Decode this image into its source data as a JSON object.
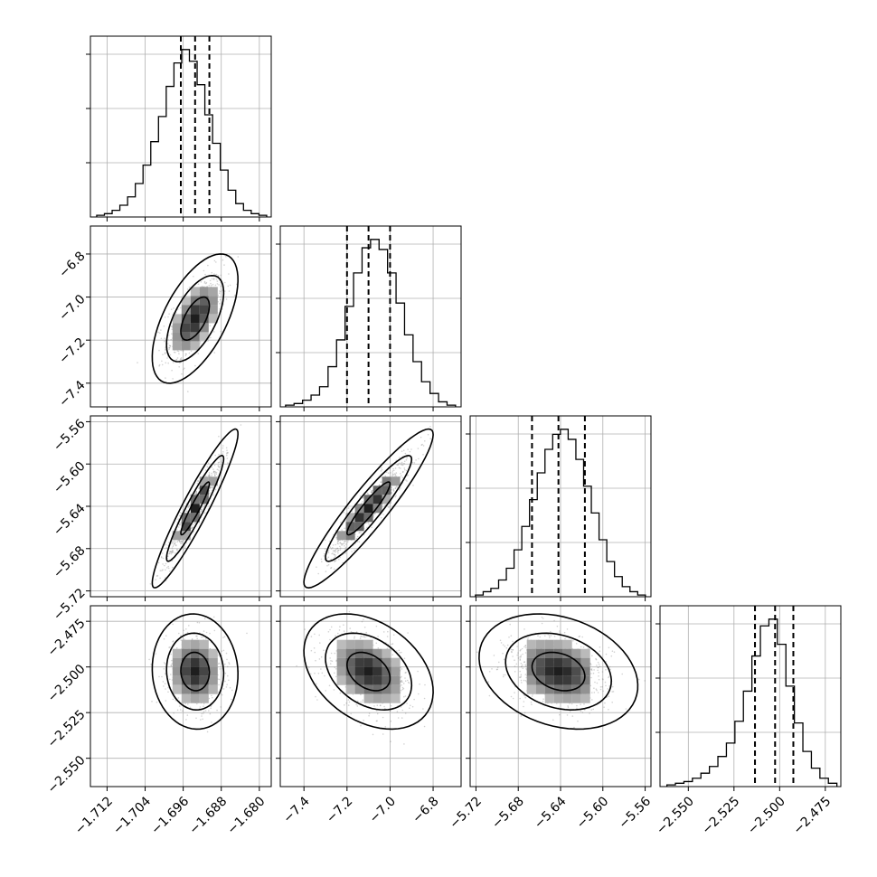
{
  "chart_data": {
    "type": "corner",
    "params": [
      {
        "median": -1.6935,
        "q16": -1.6965,
        "q84": -1.6905,
        "xlim": [
          -1.7155,
          -1.6775
        ],
        "ticks": [
          -1.712,
          -1.704,
          -1.696,
          -1.688,
          -1.68
        ],
        "tick_labels": [
          "−1.712",
          "−1.704",
          "−1.696",
          "−1.688",
          "−1.680"
        ]
      },
      {
        "median": -7.1,
        "q16": -7.2,
        "q84": -7.0,
        "xlim": [
          -7.51,
          -6.67
        ],
        "ticks": [
          -7.4,
          -7.2,
          -7.0,
          -6.8
        ],
        "tick_labels": [
          "−7.4",
          "−7.2",
          "−7.0",
          "−6.8"
        ]
      },
      {
        "median": -5.642,
        "q16": -5.667,
        "q84": -5.617,
        "xlim": [
          -5.7255,
          -5.5545
        ],
        "ticks": [
          -5.72,
          -5.68,
          -5.64,
          -5.6,
          -5.56
        ],
        "tick_labels": [
          "−5.72",
          "−5.68",
          "−5.64",
          "−5.60",
          "−5.56"
        ]
      },
      {
        "median": -2.5025,
        "q16": -2.5135,
        "q84": -2.4925,
        "xlim": [
          -2.5655,
          -2.4665
        ],
        "ticks": [
          -2.55,
          -2.525,
          -2.5,
          -2.475
        ],
        "tick_labels": [
          "−2.550",
          "−2.525",
          "−2.500",
          "−2.475"
        ]
      }
    ],
    "y_ticks": {
      "1": {
        "values": [
          -6.8,
          -7.0,
          -7.2,
          -7.4
        ],
        "labels": [
          "−6.8",
          "−7.0",
          "−7.2",
          "−7.4"
        ]
      },
      "2": {
        "values": [
          -5.56,
          -5.6,
          -5.64,
          -5.68,
          -5.72
        ],
        "labels": [
          "−5.56",
          "−5.60",
          "−5.64",
          "−5.68",
          "−5.72"
        ]
      },
      "3": {
        "values": [
          -2.475,
          -2.5,
          -2.525,
          -2.55
        ],
        "labels": [
          "−2.475",
          "−2.500",
          "−2.525",
          "−2.550"
        ]
      }
    },
    "histograms": [
      [
        1,
        2,
        4,
        7,
        12,
        20,
        31,
        45,
        60,
        78,
        92,
        100,
        93,
        79,
        61,
        44,
        28,
        16,
        8,
        4,
        2,
        1
      ],
      [
        1,
        2,
        4,
        7,
        12,
        24,
        40,
        60,
        80,
        95,
        100,
        94,
        80,
        62,
        43,
        27,
        15,
        8,
        3,
        1
      ],
      [
        1,
        3,
        5,
        10,
        17,
        28,
        42,
        58,
        74,
        88,
        97,
        100,
        94,
        82,
        66,
        50,
        34,
        21,
        12,
        6,
        3,
        1
      ],
      [
        1,
        2,
        3,
        5,
        8,
        12,
        18,
        26,
        39,
        57,
        78,
        96,
        100,
        85,
        60,
        38,
        21,
        11,
        5,
        2
      ]
    ],
    "histogram_ymax": 108,
    "quantile_style": "dashed",
    "contour_levels": [
      0.393,
      0.865,
      0.989
    ],
    "pair_correlations": {
      "1-0": 0.6,
      "2-0": 0.94,
      "2-1": 0.93,
      "3-0": -0.05,
      "3-1": -0.35,
      "3-2": -0.25
    },
    "grid": true,
    "colors": {
      "data": "#000000",
      "scatter": "#7f7f7f",
      "grid": "#b0b0b0"
    }
  }
}
